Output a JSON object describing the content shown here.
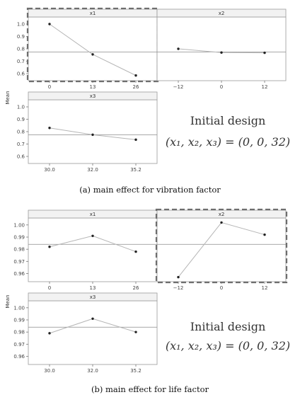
{
  "chart_data": [
    {
      "type": "line",
      "ylabel": "Mean",
      "caption": "(a) main effect for vibration factor",
      "design_title": "Initial design",
      "design_math": "(x₁, x₂, x₃) = (0, 0, 32)",
      "grand_mean": 0.775,
      "yticks": [
        "0.6",
        "0.7",
        "0.8",
        "0.9",
        "1.0"
      ],
      "ylim": [
        0.56,
        1.04
      ],
      "highlighted_factor": "x1",
      "panels": [
        {
          "name": "x1",
          "categories": [
            "0",
            "13",
            "26"
          ],
          "values": [
            1.0,
            0.755,
            0.585
          ]
        },
        {
          "name": "x2",
          "categories": [
            "−12",
            "0",
            "12"
          ],
          "values": [
            0.8,
            0.77,
            0.768
          ]
        },
        {
          "name": "x3",
          "categories": [
            "30.0",
            "32.0",
            "35.2"
          ],
          "values": [
            0.83,
            0.775,
            0.735
          ]
        }
      ]
    },
    {
      "type": "line",
      "ylabel": "Mean",
      "caption": "(b) main effect for life factor",
      "design_title": "Initial design",
      "design_math": "(x₁, x₂, x₃) = (0, 0, 32)",
      "grand_mean": 0.984,
      "yticks": [
        "0.96",
        "0.97",
        "0.98",
        "0.99",
        "1.00"
      ],
      "ylim": [
        0.955,
        1.004
      ],
      "highlighted_factor": "x2",
      "panels": [
        {
          "name": "x1",
          "categories": [
            "0",
            "13",
            "26"
          ],
          "values": [
            0.982,
            0.991,
            0.978
          ]
        },
        {
          "name": "x2",
          "categories": [
            "−12",
            "0",
            "12"
          ],
          "values": [
            0.957,
            1.002,
            0.992
          ]
        },
        {
          "name": "x3",
          "categories": [
            "30.0",
            "32.0",
            "35.2"
          ],
          "values": [
            0.979,
            0.991,
            0.98
          ]
        }
      ]
    }
  ]
}
